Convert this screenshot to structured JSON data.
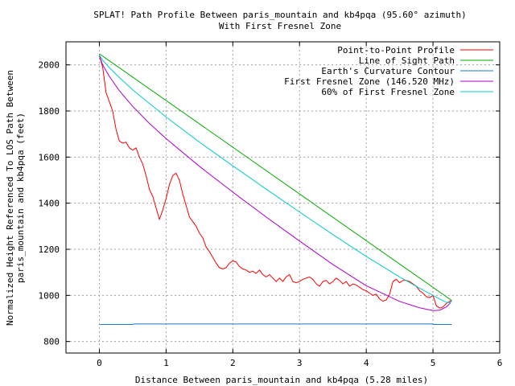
{
  "chart_data": {
    "type": "line",
    "title": "SPLAT! Path Profile Between paris_mountain and kb4pqa (95.60° azimuth)",
    "subtitle": "With First Fresnel Zone",
    "xlabel": "Distance Between paris_mountain and kb4pqa (5.28 miles)",
    "ylabel_line1": "Normalized Height Referenced To LOS Path Between",
    "ylabel_line2": "paris_mountain and kb4pqa (feet)",
    "xlim": [
      -0.5,
      6
    ],
    "ylim": [
      750,
      2100
    ],
    "x_ticks": [
      0,
      1,
      2,
      3,
      4,
      5,
      6
    ],
    "y_ticks": [
      800,
      1000,
      1200,
      1400,
      1600,
      1800,
      2000
    ],
    "grid": true,
    "legend_position": "top-right",
    "series": [
      {
        "name": "Point-to-Point Profile",
        "color": "#ff0000",
        "x": [
          0.0,
          0.05,
          0.1,
          0.15,
          0.2,
          0.25,
          0.3,
          0.35,
          0.4,
          0.45,
          0.5,
          0.55,
          0.6,
          0.65,
          0.7,
          0.75,
          0.8,
          0.85,
          0.9,
          0.95,
          1.0,
          1.05,
          1.1,
          1.15,
          1.2,
          1.25,
          1.3,
          1.35,
          1.4,
          1.45,
          1.5,
          1.55,
          1.6,
          1.65,
          1.7,
          1.75,
          1.8,
          1.85,
          1.9,
          1.95,
          2.0,
          2.05,
          2.1,
          2.15,
          2.2,
          2.25,
          2.3,
          2.35,
          2.4,
          2.45,
          2.5,
          2.55,
          2.6,
          2.65,
          2.7,
          2.75,
          2.8,
          2.85,
          2.9,
          2.95,
          3.0,
          3.05,
          3.1,
          3.15,
          3.2,
          3.25,
          3.3,
          3.35,
          3.4,
          3.45,
          3.5,
          3.55,
          3.6,
          3.65,
          3.7,
          3.75,
          3.8,
          3.85,
          3.9,
          3.95,
          4.0,
          4.05,
          4.1,
          4.15,
          4.2,
          4.25,
          4.3,
          4.35,
          4.4,
          4.45,
          4.5,
          4.55,
          4.6,
          4.65,
          4.7,
          4.75,
          4.8,
          4.85,
          4.9,
          4.95,
          5.0,
          5.05,
          5.1,
          5.15,
          5.2,
          5.25,
          5.28
        ],
        "values": [
          2040,
          1990,
          1880,
          1840,
          1800,
          1720,
          1670,
          1660,
          1665,
          1640,
          1630,
          1640,
          1600,
          1570,
          1520,
          1460,
          1430,
          1380,
          1330,
          1370,
          1420,
          1480,
          1520,
          1530,
          1500,
          1440,
          1390,
          1340,
          1320,
          1300,
          1270,
          1250,
          1210,
          1190,
          1165,
          1140,
          1120,
          1115,
          1120,
          1140,
          1150,
          1145,
          1125,
          1115,
          1110,
          1100,
          1105,
          1095,
          1110,
          1090,
          1080,
          1090,
          1075,
          1060,
          1075,
          1060,
          1080,
          1090,
          1060,
          1055,
          1060,
          1070,
          1075,
          1080,
          1070,
          1050,
          1040,
          1060,
          1065,
          1050,
          1060,
          1075,
          1065,
          1050,
          1060,
          1040,
          1050,
          1045,
          1035,
          1025,
          1020,
          1010,
          1000,
          1005,
          985,
          975,
          980,
          1005,
          1060,
          1070,
          1055,
          1065,
          1065,
          1060,
          1050,
          1040,
          1020,
          1010,
          995,
          990,
          1000,
          955,
          945,
          950,
          965,
          975,
          980
        ]
      },
      {
        "name": "Line of Sight Path",
        "color": "#00aa00",
        "x": [
          0,
          5.28
        ],
        "values": [
          2048,
          978
        ]
      },
      {
        "name": "Earth's Curvature Contour",
        "color": "#1e78c8",
        "x": [
          0,
          0.5,
          0.51,
          5.0,
          5.01,
          5.28
        ],
        "values": [
          874,
          874,
          876,
          876,
          874,
          874
        ]
      },
      {
        "name": "First Fresnel Zone (146.520 MHz)",
        "color": "#aa00cc",
        "x": [
          0.0,
          0.05,
          0.15,
          0.3,
          0.5,
          0.75,
          1.0,
          1.5,
          2.0,
          2.5,
          3.0,
          3.5,
          4.0,
          4.5,
          4.8,
          5.0,
          5.1,
          5.2,
          5.25,
          5.28
        ],
        "values": [
          2040,
          2000,
          1950,
          1888,
          1820,
          1746,
          1680,
          1560,
          1448,
          1340,
          1236,
          1134,
          1042,
          974,
          946,
          934,
          936,
          950,
          964,
          978
        ]
      },
      {
        "name": "60% of First Fresnel Zone",
        "color": "#00cccc",
        "x": [
          0.0,
          0.05,
          0.15,
          0.3,
          0.5,
          0.75,
          1.0,
          1.5,
          2.0,
          2.5,
          3.0,
          3.5,
          4.0,
          4.5,
          4.8,
          5.0,
          5.1,
          5.2,
          5.25,
          5.28
        ],
        "values": [
          2043,
          2020,
          1988,
          1945,
          1892,
          1832,
          1774,
          1665,
          1562,
          1461,
          1362,
          1264,
          1169,
          1080,
          1031,
          1000,
          984,
          970,
          968,
          978
        ]
      }
    ]
  }
}
